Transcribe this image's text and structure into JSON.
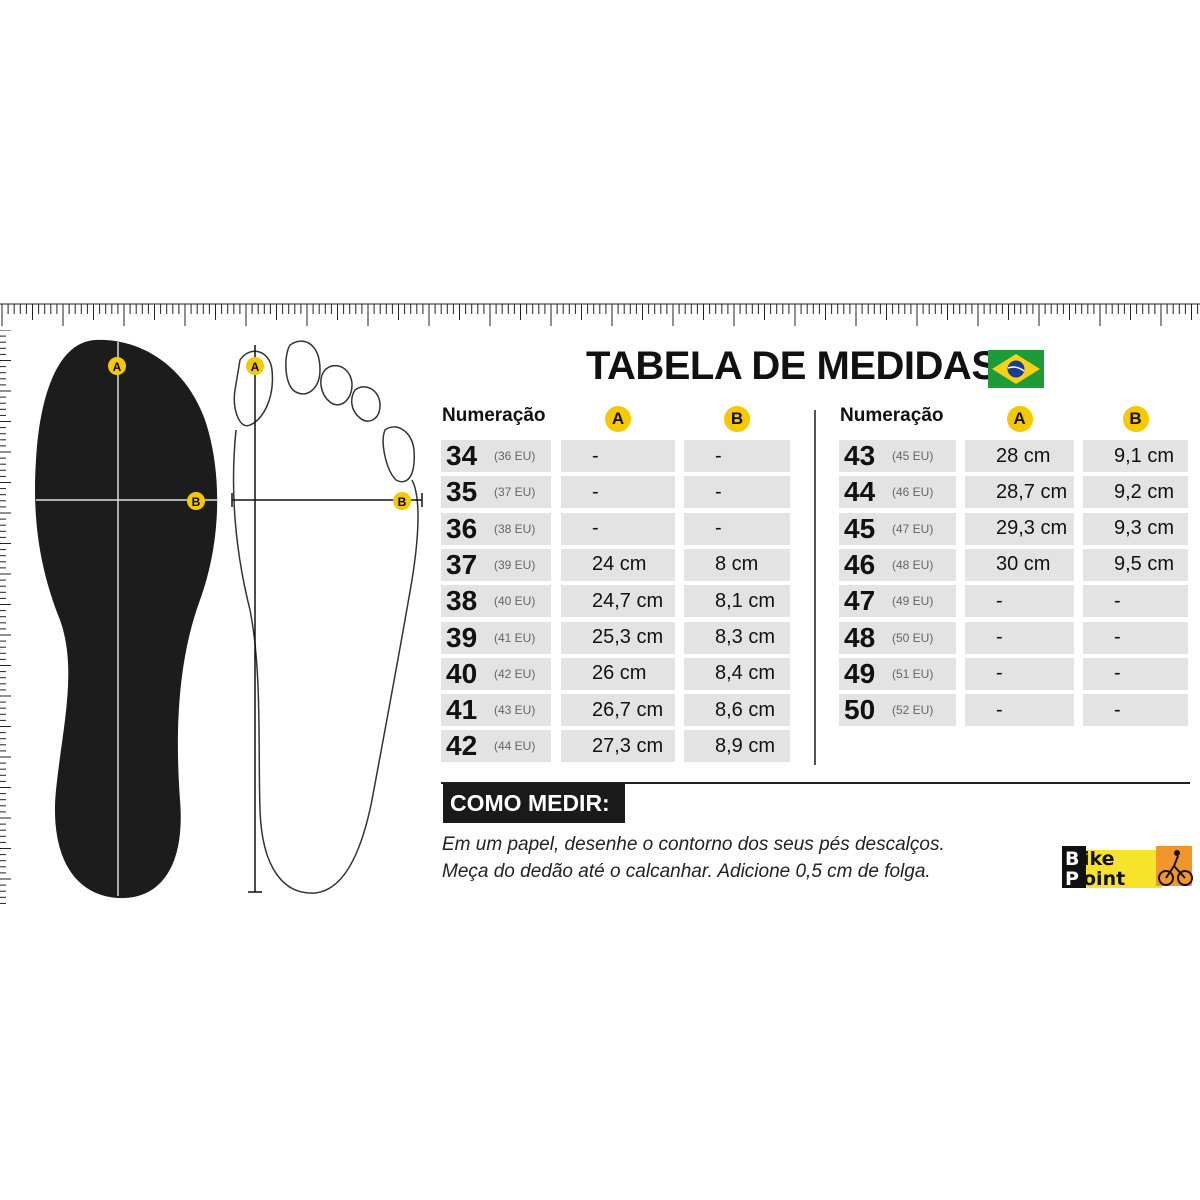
{
  "title": "TABELA DE MEDIDAS",
  "flag_icon": "brazil-flag",
  "colors": {
    "accent_yellow": "#f5c800",
    "cell_gray": "#e3e3e3",
    "insole": "#1c1c1c"
  },
  "diagram_labels": {
    "a": "A",
    "b": "B"
  },
  "headers": {
    "size": "Numeração",
    "a": "A",
    "b": "B"
  },
  "left_table": [
    {
      "size": "34",
      "eu": "(36 EU)",
      "a": "-",
      "b": "-"
    },
    {
      "size": "35",
      "eu": "(37 EU)",
      "a": "-",
      "b": "-"
    },
    {
      "size": "36",
      "eu": "(38 EU)",
      "a": "-",
      "b": "-"
    },
    {
      "size": "37",
      "eu": "(39 EU)",
      "a": "24 cm",
      "b": "8 cm"
    },
    {
      "size": "38",
      "eu": "(40 EU)",
      "a": "24,7 cm",
      "b": "8,1 cm"
    },
    {
      "size": "39",
      "eu": "(41 EU)",
      "a": "25,3 cm",
      "b": "8,3 cm"
    },
    {
      "size": "40",
      "eu": "(42 EU)",
      "a": "26 cm",
      "b": "8,4 cm"
    },
    {
      "size": "41",
      "eu": "(43 EU)",
      "a": "26,7 cm",
      "b": "8,6 cm"
    },
    {
      "size": "42",
      "eu": "(44 EU)",
      "a": "27,3 cm",
      "b": "8,9 cm"
    }
  ],
  "right_table": [
    {
      "size": "43",
      "eu": "(45 EU)",
      "a": "28 cm",
      "b": "9,1 cm"
    },
    {
      "size": "44",
      "eu": "(46 EU)",
      "a": "28,7 cm",
      "b": "9,2 cm"
    },
    {
      "size": "45",
      "eu": "(47 EU)",
      "a": "29,3 cm",
      "b": "9,3 cm"
    },
    {
      "size": "46",
      "eu": "(48 EU)",
      "a": "30 cm",
      "b": "9,5 cm"
    },
    {
      "size": "47",
      "eu": "(49 EU)",
      "a": "-",
      "b": "-"
    },
    {
      "size": "48",
      "eu": "(50 EU)",
      "a": "-",
      "b": "-"
    },
    {
      "size": "49",
      "eu": "(51 EU)",
      "a": "-",
      "b": "-"
    },
    {
      "size": "50",
      "eu": "(52 EU)",
      "a": "-",
      "b": "-"
    }
  ],
  "how_to": {
    "heading": "COMO MEDIR:",
    "line1": "Em um papel,  desenhe o contorno dos seus pés descalços.",
    "line2": "Meça do dedão até o calcanhar. Adicione 0,5 cm de folga."
  },
  "logo": {
    "line1": "Bike",
    "line2": "Point"
  }
}
